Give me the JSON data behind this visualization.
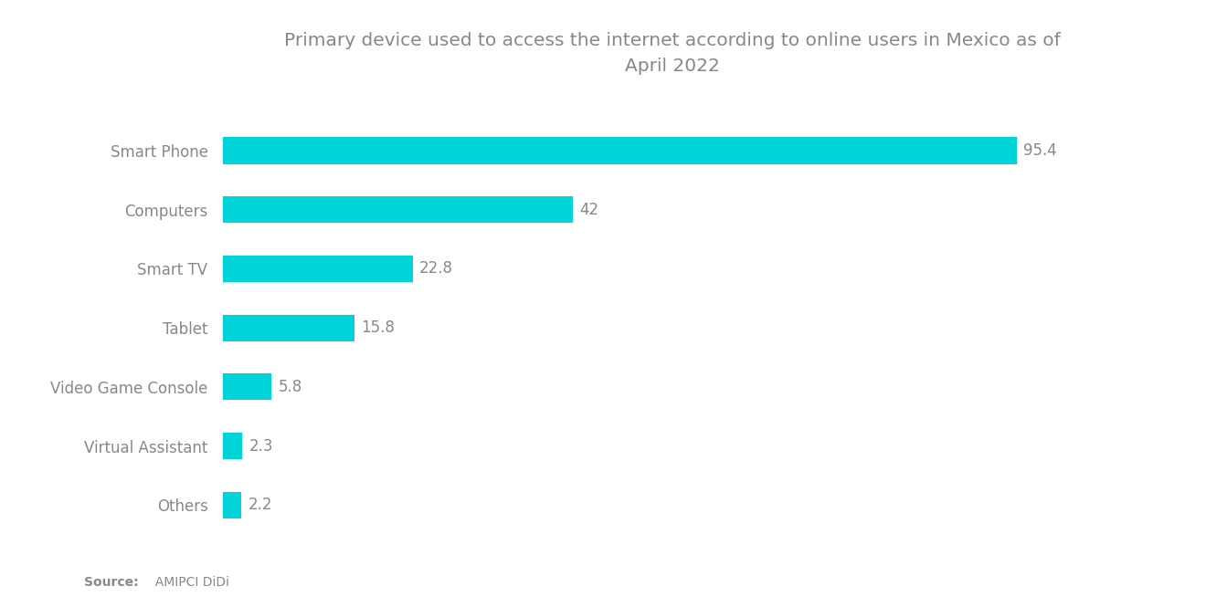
{
  "title_line1": "Primary device used to access the internet according to online users in Mexico as of",
  "title_line2": "April 2022",
  "categories": [
    "Smart Phone",
    "Computers",
    "Smart TV",
    "Tablet",
    "Video Game Console",
    "Virtual Assistant",
    "Others"
  ],
  "values": [
    95.4,
    42,
    22.8,
    15.8,
    5.8,
    2.3,
    2.2
  ],
  "bar_color": "#00D4D8",
  "background_color": "#ffffff",
  "title_fontsize": 14.5,
  "label_fontsize": 12,
  "value_fontsize": 12,
  "source_bold": "Source:",
  "source_rest": "  AMIPCI DiDi",
  "xlim": [
    0,
    108
  ],
  "bar_height": 0.45,
  "label_color": "#888888",
  "value_color": "#888888",
  "title_color": "#888888"
}
